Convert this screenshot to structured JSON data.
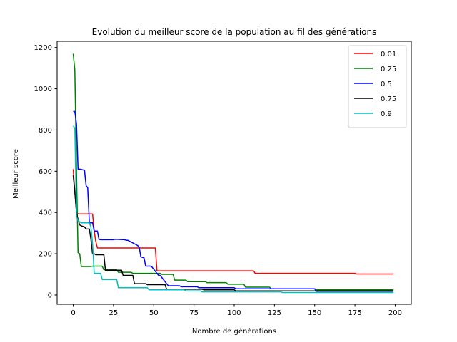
{
  "chart_data": {
    "type": "line",
    "title": "Evolution du meilleur score de la population au fil des générations",
    "xlabel": "Nombre de générations",
    "ylabel": "Meilleur score",
    "xlim": [
      -10,
      210
    ],
    "ylim": [
      -45,
      1230
    ],
    "xticks": [
      0,
      25,
      50,
      75,
      100,
      125,
      150,
      175,
      200
    ],
    "yticks": [
      0,
      200,
      400,
      600,
      800,
      1000,
      1200
    ],
    "grid": false,
    "legend_position": "top-right",
    "series": [
      {
        "name": "0.01",
        "color": "#ff0000",
        "x": [
          0,
          1,
          2,
          3,
          5,
          12,
          13,
          14,
          15,
          51,
          52,
          112,
          113,
          175,
          176,
          199
        ],
        "y": [
          610,
          500,
          400,
          393,
          393,
          393,
          310,
          260,
          228,
          228,
          117,
          117,
          105,
          105,
          102,
          102
        ]
      },
      {
        "name": "0.25",
        "color": "#008000",
        "x": [
          0,
          1,
          2,
          3,
          4,
          5,
          11,
          12,
          18,
          19,
          27,
          28,
          36,
          37,
          54,
          55,
          62,
          63,
          70,
          71,
          82,
          83,
          95,
          96,
          106,
          107,
          122,
          123,
          150,
          151,
          199
        ],
        "y": [
          1170,
          1090,
          600,
          205,
          200,
          138,
          138,
          140,
          140,
          122,
          122,
          110,
          110,
          105,
          105,
          100,
          100,
          72,
          72,
          65,
          65,
          60,
          60,
          52,
          52,
          38,
          38,
          30,
          30,
          25,
          25
        ]
      },
      {
        "name": "0.5",
        "color": "#0000ff",
        "x": [
          0,
          1,
          2,
          3,
          4,
          7,
          8,
          9,
          10,
          12,
          13,
          15,
          16,
          17,
          25,
          26,
          32,
          33,
          34,
          40,
          41,
          42,
          44,
          45,
          48,
          49,
          53,
          54,
          58,
          59,
          66,
          67,
          77,
          78,
          100,
          101,
          150,
          151,
          199
        ],
        "y": [
          890,
          890,
          830,
          610,
          610,
          605,
          530,
          520,
          350,
          350,
          310,
          310,
          270,
          268,
          268,
          270,
          268,
          265,
          265,
          240,
          230,
          185,
          180,
          140,
          140,
          135,
          95,
          95,
          55,
          45,
          45,
          40,
          40,
          35,
          35,
          30,
          30,
          18,
          18
        ]
      },
      {
        "name": "0.75",
        "color": "#000000",
        "x": [
          0,
          1,
          2,
          3,
          4,
          5,
          7,
          8,
          10,
          11,
          12,
          13,
          14,
          19,
          20,
          30,
          31,
          37,
          38,
          45,
          46,
          57,
          58,
          80,
          81,
          100,
          101,
          199
        ],
        "y": [
          580,
          500,
          400,
          365,
          340,
          335,
          330,
          320,
          320,
          270,
          200,
          200,
          195,
          195,
          120,
          120,
          95,
          95,
          55,
          55,
          50,
          50,
          28,
          28,
          25,
          25,
          20,
          20
        ]
      },
      {
        "name": "0.9",
        "color": "#00bfbf",
        "x": [
          0,
          1,
          2,
          3,
          5,
          10,
          11,
          12,
          13,
          17,
          18,
          27,
          28,
          46,
          47,
          69,
          70,
          79,
          80,
          129,
          130,
          199
        ],
        "y": [
          820,
          810,
          380,
          360,
          350,
          350,
          330,
          250,
          105,
          105,
          75,
          75,
          35,
          35,
          25,
          25,
          20,
          20,
          15,
          15,
          12,
          12
        ]
      }
    ]
  }
}
